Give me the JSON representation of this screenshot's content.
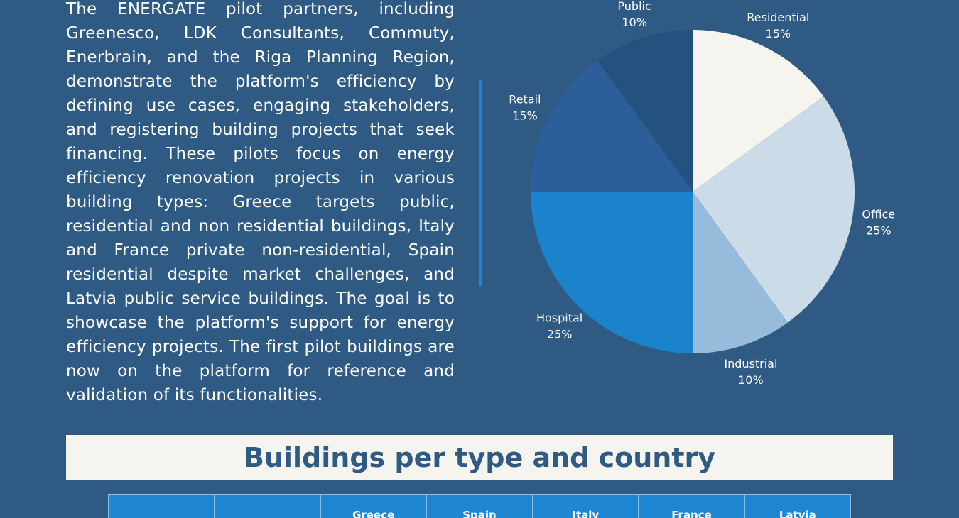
{
  "intro_text": "The ENERGATE pilot partners, including Greenesco, LDK Consultants, Commuty, Enerbrain, and the Riga Planning Region, demonstrate the platform's efficiency by defining use cases, engaging stakeholders, and registering building projects that seek financing. These pilots focus on energy efficiency renovation projects in various building types: Greece targets public, residential and non residential buildings, Italy and France private non-residential, Spain residential despite market challenges, and Latvia public service buildings. The goal is to showcase the platform's support for energy efficiency projects. The first pilot buildings are now on the platform for reference and validation of its functionalities.",
  "chart_data": {
    "type": "pie",
    "categories": [
      "Residential",
      "Office",
      "Industrial",
      "Hospital",
      "Retail",
      "Public"
    ],
    "values": [
      15,
      25,
      10,
      25,
      15,
      10
    ],
    "labels": [
      "15%",
      "25%",
      "10%",
      "25%",
      "15%",
      "10%"
    ],
    "colors": [
      "#f5f4ef",
      "#cbdbe7",
      "#97bbda",
      "#1a83cc",
      "#2c5f9a",
      "#23527e"
    ]
  },
  "section_title": "Buildings per type and country",
  "table": {
    "headers": [
      "",
      "",
      "Greece",
      "Spain",
      "Italy",
      "France",
      "Latvia"
    ]
  }
}
